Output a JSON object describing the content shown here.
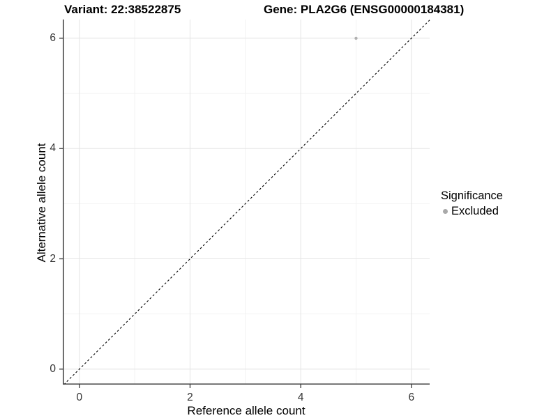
{
  "chart_data": {
    "type": "scatter",
    "title_left": "Variant: 22:38522875",
    "title_right": "Gene: PLA2G6 (ENSG00000184381)",
    "xlabel": "Reference allele count",
    "ylabel": "Alternative allele count",
    "xlim": [
      -0.3,
      6.33
    ],
    "ylim": [
      -0.28,
      6.34
    ],
    "xticks": [
      0,
      2,
      4,
      6
    ],
    "yticks": [
      0,
      2,
      4,
      6
    ],
    "minor_xticks": [
      1,
      3,
      5
    ],
    "minor_yticks": [
      1,
      3,
      5
    ],
    "grid": true,
    "identity_line": {
      "style": "dashed",
      "color": "#000000",
      "from": -0.28,
      "to": 6.33
    },
    "series": [
      {
        "name": "Excluded",
        "color": "#b0b0b0",
        "points": [
          {
            "x": 5,
            "y": 6
          }
        ]
      }
    ],
    "legend": {
      "title": "Significance",
      "position": "right",
      "items": [
        {
          "label": "Excluded",
          "color": "#a9a9a9"
        }
      ]
    },
    "colors": {
      "axis_line": "#3a3a3a",
      "tick_text": "#333333",
      "major_grid": "#e4e4e4",
      "minor_grid": "#f2f2f2",
      "background": "#ffffff"
    }
  }
}
